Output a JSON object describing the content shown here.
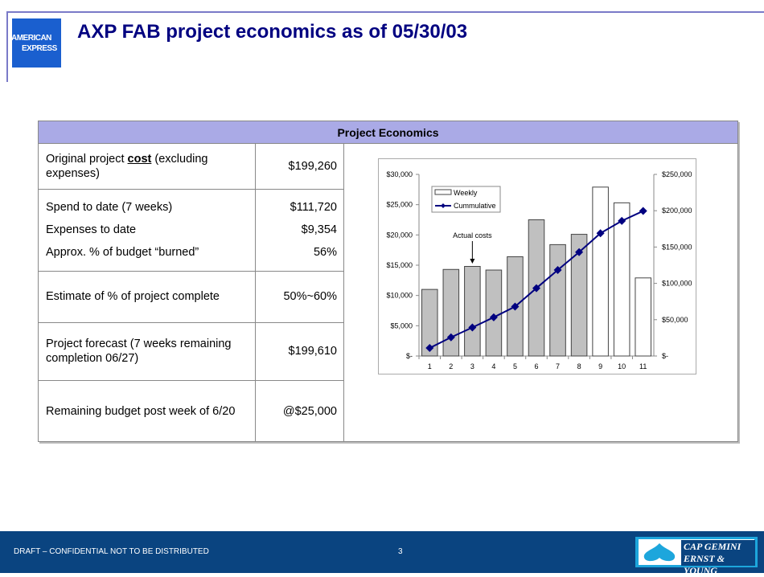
{
  "header": {
    "title": "AXP FAB project economics as of 05/30/03",
    "logo_line1": "AMERICAN",
    "logo_line2": "EXPRESS"
  },
  "table": {
    "heading": "Project Economics",
    "row1": {
      "label_pre": "Original project ",
      "label_bold": "cost",
      "label_post": " (excluding expenses)",
      "value": "$199,260"
    },
    "row2": {
      "labels": [
        "Spend to date (7 weeks)",
        "Expenses to date",
        "Approx. % of budget “burned”"
      ],
      "values": [
        "$111,720",
        "$9,354",
        "56%"
      ]
    },
    "row3": {
      "label": "Estimate of % of project complete",
      "value": "50%~60%"
    },
    "row4": {
      "label": "Project forecast (7 weeks remaining completion 06/27)",
      "value": "$199,610"
    },
    "row5": {
      "label": "Remaining budget post week of 6/20",
      "value": "@$25,000"
    }
  },
  "chart_data": {
    "type": "bar",
    "categories": [
      "1",
      "2",
      "3",
      "4",
      "5",
      "6",
      "7",
      "8",
      "9",
      "10",
      "11"
    ],
    "series": [
      {
        "name": "Weekly",
        "type": "bar",
        "axis": "left",
        "values": [
          11000,
          14300,
          14800,
          14200,
          16400,
          22500,
          18400,
          20100,
          27900,
          25300,
          12900
        ],
        "actual": [
          true,
          true,
          true,
          true,
          true,
          true,
          true,
          true,
          false,
          false,
          false
        ]
      },
      {
        "name": "Cummulative",
        "type": "line",
        "axis": "right",
        "values": [
          11000,
          25700,
          39300,
          53300,
          68000,
          93400,
          118400,
          143000,
          169000,
          186000,
          199610
        ]
      }
    ],
    "left_axis": {
      "ylim": [
        0,
        30000
      ],
      "ticks": [
        "$-",
        "$5,000",
        "$10,000",
        "$15,000",
        "$20,000",
        "$25,000",
        "$30,000"
      ]
    },
    "right_axis": {
      "ylim": [
        0,
        250000
      ],
      "ticks": [
        "$-",
        "$50,000",
        "$100,000",
        "$150,000",
        "$200,000",
        "$250,000"
      ]
    },
    "annotation": "Actual costs",
    "legend": "top-left",
    "colors": {
      "actual": "#c0c0c0",
      "forecast": "#ffffff",
      "line": "#000080"
    }
  },
  "footer": {
    "text": "DRAFT – CONFIDENTIAL NOT TO BE DISTRIBUTED",
    "page": "3",
    "brand_line1": "CAP GEMINI",
    "brand_line2": "ERNST & YOUNG"
  }
}
